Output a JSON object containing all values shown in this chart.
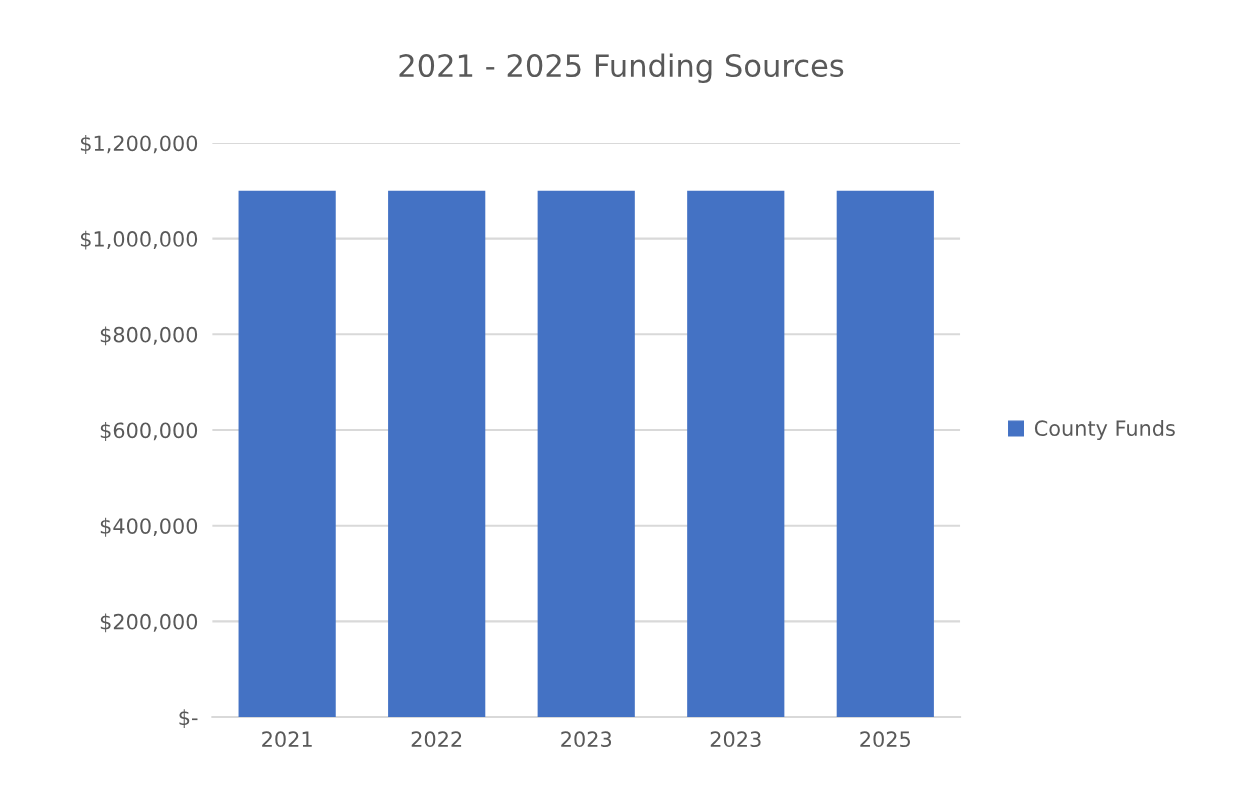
{
  "chart_data": {
    "type": "bar",
    "title": "2021 - 2025 Funding Sources",
    "categories": [
      "2021",
      "2022",
      "2023",
      "2023",
      "2025"
    ],
    "series": [
      {
        "name": "County Funds",
        "color": "#4472c4",
        "values": [
          1100000,
          1100000,
          1100000,
          1100000,
          1100000
        ]
      }
    ],
    "ylim": [
      0,
      1200000
    ],
    "yticks": [
      {
        "value": 0,
        "label": "$-"
      },
      {
        "value": 200000,
        "label": "$200,000"
      },
      {
        "value": 400000,
        "label": "$400,000"
      },
      {
        "value": 600000,
        "label": "$600,000"
      },
      {
        "value": 800000,
        "label": "$800,000"
      },
      {
        "value": 1000000,
        "label": "$1,000,000"
      },
      {
        "value": 1200000,
        "label": "$1,200,000"
      }
    ],
    "grid": "y",
    "legend": "right"
  }
}
